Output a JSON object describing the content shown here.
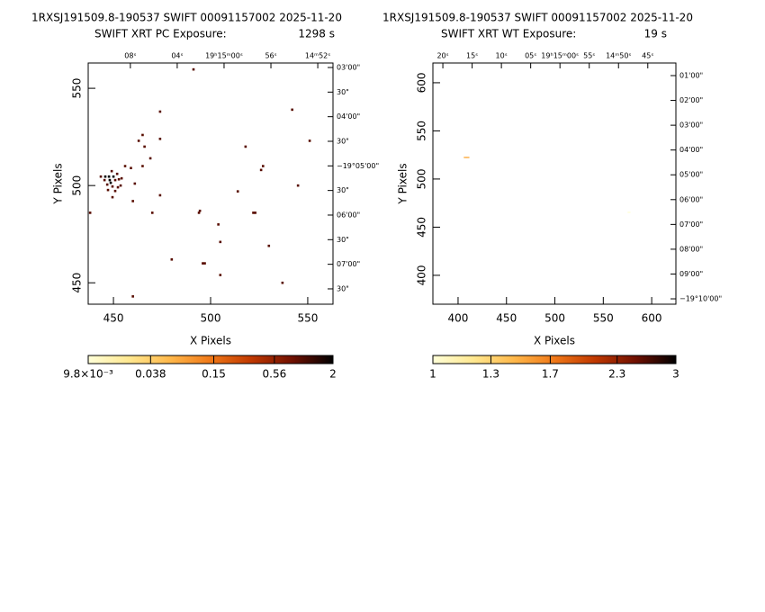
{
  "chart_data": [
    {
      "type": "scatter",
      "title": "1RXSJ191509.8-190537 SWIFT 00091157002 2025-11-20",
      "subtitle": "SWIFT XRT PC Exposure:",
      "exposure": "1298 s",
      "x_label": "X Pixels",
      "y_label": "Y Pixels",
      "xlim": [
        437,
        563
      ],
      "ylim": [
        439,
        563
      ],
      "xticks": [
        450,
        500,
        550
      ],
      "yticks": [
        450,
        500,
        550
      ],
      "x": [
        491.2,
        542.0,
        474.0,
        551.0,
        518.0,
        465.0,
        463.0,
        466.0,
        474.0,
        469.0,
        465.0,
        459.0,
        456.0,
        527.0,
        526.0,
        461.0,
        545.0,
        474.0,
        514.0,
        460.0,
        438.0,
        470.0,
        494.0,
        494.5,
        504.0,
        522.0,
        523.0,
        505.0,
        530.0,
        480.0,
        496.0,
        497.0,
        505.0,
        537.0,
        460.0,
        445.8,
        447.7,
        449.1,
        450.0,
        450.9,
        448.6,
        451.9,
        452.8,
        454.2,
        449.5,
        446.8,
        447.2,
        450.9,
        449.5,
        452.3,
        453.7,
        445.4,
        448.1,
        443.5
      ],
      "y": [
        559.7,
        539.0,
        538.0,
        523.0,
        520.0,
        526.0,
        523.0,
        520.0,
        524.0,
        514.0,
        510.0,
        509.0,
        510.0,
        510.0,
        508.0,
        501.0,
        500.0,
        495.0,
        497.0,
        492.0,
        486.0,
        486.0,
        486.0,
        487.0,
        480.0,
        486.0,
        486.0,
        471.0,
        469.0,
        462.0,
        460.0,
        460.0,
        454.0,
        450.0,
        443.0,
        504.6,
        504.6,
        507.4,
        504.6,
        502.8,
        501.4,
        506.0,
        503.2,
        503.7,
        499.5,
        500.5,
        497.7,
        497.2,
        494.0,
        499.1,
        500.0,
        502.8,
        502.8,
        504.6
      ],
      "values": [
        1,
        1,
        1,
        1,
        1,
        1,
        1,
        1,
        1,
        1,
        1,
        1,
        1,
        1,
        1,
        1,
        1,
        1,
        1,
        1,
        1,
        1,
        1,
        1,
        1,
        1,
        1,
        1,
        1,
        1,
        1,
        1,
        1,
        1,
        1,
        2,
        2,
        1,
        2,
        1,
        2,
        1,
        1,
        1,
        1,
        1,
        1,
        1,
        1,
        1,
        1,
        1,
        2,
        1
      ],
      "ra_lim": [
        71.6,
        50.7
      ],
      "ra_ticks": [
        {
          "value": 68,
          "label": "08ˢ"
        },
        {
          "value": 64,
          "label": "04ˢ"
        },
        {
          "value": 60,
          "label": "19ʰ15ᵐ00ˢ"
        },
        {
          "value": 56,
          "label": "56ˢ"
        },
        {
          "value": 52,
          "label": "14ᵐ52ˢ"
        }
      ],
      "dec_lim": [
        174.5,
        468.7
      ],
      "dec_ticks": [
        {
          "value": 180,
          "label": "03'00\""
        },
        {
          "value": 210,
          "label": "30\""
        },
        {
          "value": 240,
          "label": "04'00\""
        },
        {
          "value": 270,
          "label": "30\""
        },
        {
          "value": 300,
          "label": "−19°05'00\""
        },
        {
          "value": 330,
          "label": "30\""
        },
        {
          "value": 360,
          "label": "06'00\""
        },
        {
          "value": 390,
          "label": "30\""
        },
        {
          "value": 420,
          "label": "07'00\""
        },
        {
          "value": 450,
          "label": "30\""
        }
      ],
      "colorbar": {
        "log": true,
        "lim": [
          0.0098,
          2
        ],
        "ticks": [
          {
            "value": 0.0098,
            "label": "9.8×10⁻³"
          },
          0.038,
          0.15,
          0.56,
          2
        ],
        "colormap": [
          "#ffffd8",
          "#ffe890",
          "#ffb84a",
          "#f07818",
          "#c03800",
          "#701000",
          "#000000"
        ]
      }
    },
    {
      "type": "scatter",
      "title": "1RXSJ191509.8-190537 SWIFT 00091157002 2025-11-20",
      "subtitle": "SWIFT XRT WT Exposure:",
      "exposure": "19 s",
      "x_label": "X Pixels",
      "y_label": "Y Pixels",
      "xlim": [
        374,
        625
      ],
      "ylim": [
        370,
        620.5
      ],
      "xticks": [
        400,
        450,
        500,
        550,
        600
      ],
      "yticks": [
        400,
        450,
        500,
        550,
        600
      ],
      "x": [
        407.4,
        410.2,
        576.6
      ],
      "y": [
        522.4,
        522.4,
        465.4
      ],
      "values": [
        1.5,
        1.5,
        1
      ],
      "ra_lim": [
        81.7,
        40.2
      ],
      "ra_ticks": [
        {
          "value": 80,
          "label": "20ˢ"
        },
        {
          "value": 75,
          "label": "15ˢ"
        },
        {
          "value": 70,
          "label": "10ˢ"
        },
        {
          "value": 65,
          "label": "05ˢ"
        },
        {
          "value": 60,
          "label": "19ʰ15ᵐ00ˢ"
        },
        {
          "value": 55,
          "label": "55ˢ"
        },
        {
          "value": 50,
          "label": "14ᵐ50ˢ"
        },
        {
          "value": 45,
          "label": "45ˢ"
        }
      ],
      "dec_lim": [
        29.5,
        613
      ],
      "dec_ticks": [
        {
          "value": 60,
          "label": "01'00\""
        },
        {
          "value": 120,
          "label": "02'00\""
        },
        {
          "value": 180,
          "label": "03'00\""
        },
        {
          "value": 240,
          "label": "04'00\""
        },
        {
          "value": 300,
          "label": "05'00\""
        },
        {
          "value": 360,
          "label": "06'00\""
        },
        {
          "value": 420,
          "label": "07'00\""
        },
        {
          "value": 480,
          "label": "08'00\""
        },
        {
          "value": 540,
          "label": "09'00\""
        },
        {
          "value": 600,
          "label": "−19°10'00\""
        }
      ],
      "colorbar": {
        "log": true,
        "lim": [
          1,
          3
        ],
        "ticks": [
          1,
          1.3,
          1.7,
          2.3,
          3
        ],
        "colormap": [
          "#ffffd8",
          "#ffe890",
          "#ffb84a",
          "#f07818",
          "#c03800",
          "#701000",
          "#000000"
        ]
      }
    }
  ]
}
